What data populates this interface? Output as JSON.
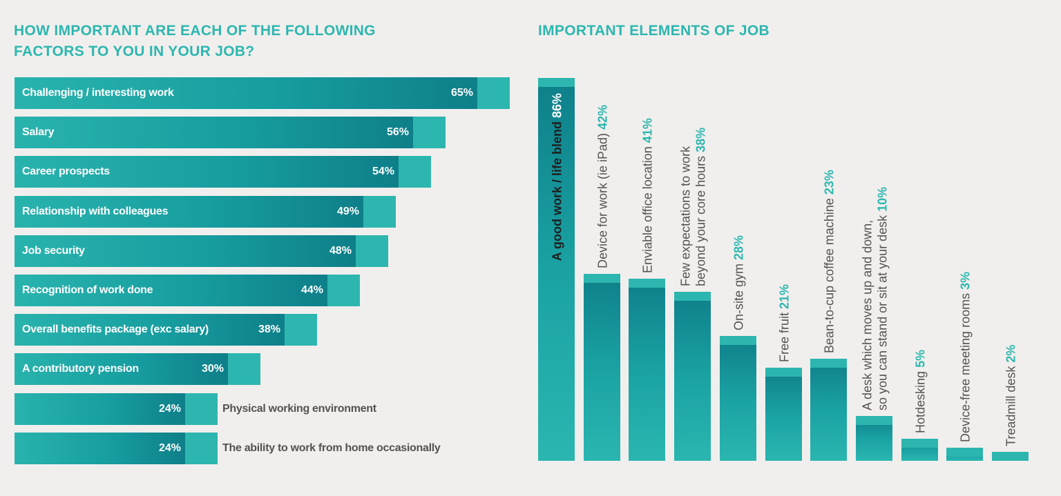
{
  "left_title_line1": "HOW IMPORTANT ARE EACH OF THE FOLLOWING",
  "left_title_line2": "FACTORS TO YOU IN YOUR JOB?",
  "right_title": "IMPORTANT ELEMENTS OF JOB",
  "colors": {
    "title": "#2cb7b0",
    "bar_light": "#2db6af",
    "bar_dark": "#0e7f89",
    "text_dark": "#555152",
    "value_teal": "#2cb7b0",
    "background": "#f1efed"
  },
  "chart_data": [
    {
      "type": "bar",
      "orientation": "horizontal",
      "title": "HOW IMPORTANT ARE EACH OF THE FOLLOWING FACTORS TO YOU IN YOUR JOB?",
      "categories": [
        "Challenging / interesting work",
        "Salary",
        "Career prospects",
        "Relationship with colleagues",
        "Job security",
        "Recognition of work done",
        "Overall benefits package (exc salary)",
        "A contributory pension",
        "Physical working environment",
        "The ability to work from home occasionally"
      ],
      "values": [
        65,
        56,
        54,
        49,
        48,
        44,
        38,
        30,
        24,
        24
      ],
      "value_labels": [
        "65%",
        "56%",
        "54%",
        "49%",
        "48%",
        "44%",
        "38%",
        "30%",
        "24%",
        "24%"
      ],
      "label_outside": [
        false,
        false,
        false,
        false,
        false,
        false,
        false,
        false,
        true,
        true
      ],
      "unit": "%"
    },
    {
      "type": "bar",
      "orientation": "vertical",
      "title": "IMPORTANT ELEMENTS OF JOB",
      "categories": [
        [
          "A good work / life blend"
        ],
        [
          "Device for work (ie iPad)"
        ],
        [
          "Enviable office location"
        ],
        [
          "Few expectations to work",
          "beyond your core hours"
        ],
        [
          "On-site gym"
        ],
        [
          "Free fruit"
        ],
        [
          "Bean-to-cup coffee machine"
        ],
        [
          "A desk which moves up and down,",
          "so you can stand or sit at your desk"
        ],
        [
          "Hotdesking"
        ],
        [
          "Device-free meeting rooms"
        ],
        [
          "Treadmill desk"
        ]
      ],
      "values": [
        86,
        42,
        41,
        38,
        28,
        21,
        23,
        10,
        5,
        3,
        2
      ],
      "value_labels": [
        "86%",
        "42%",
        "41%",
        "38%",
        "28%",
        "21%",
        "23%",
        "10%",
        "5%",
        "3%",
        "2%"
      ],
      "unit": "%"
    }
  ]
}
